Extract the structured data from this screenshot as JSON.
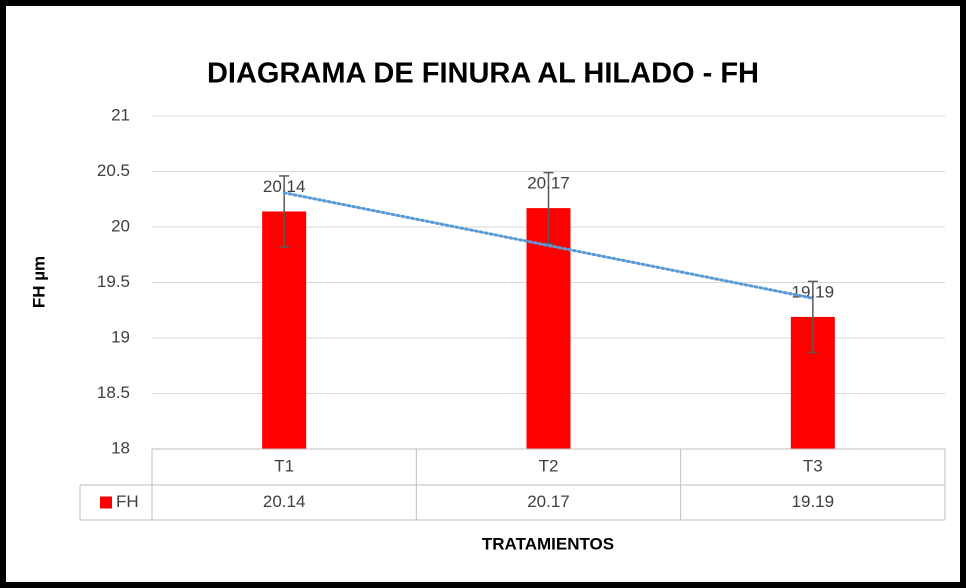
{
  "chart_data": {
    "type": "bar",
    "title": "DIAGRAMA DE FINURA AL HILADO - FH",
    "y_label": "FH µm",
    "x_label": "TRATAMIENTOS",
    "categories": [
      "T1",
      "T2",
      "T3"
    ],
    "series": [
      {
        "name": "FH",
        "color": "#ff0000",
        "values": [
          20.14,
          20.17,
          19.19
        ],
        "errors": [
          0.32,
          0.32,
          0.32
        ]
      }
    ],
    "ylim": [
      18,
      21
    ],
    "yticks": [
      18,
      18.5,
      19,
      19.5,
      20,
      20.5,
      21
    ],
    "grid": true,
    "trendline": {
      "type": "linear",
      "color": "#5b9bd5"
    },
    "data_table": true
  }
}
